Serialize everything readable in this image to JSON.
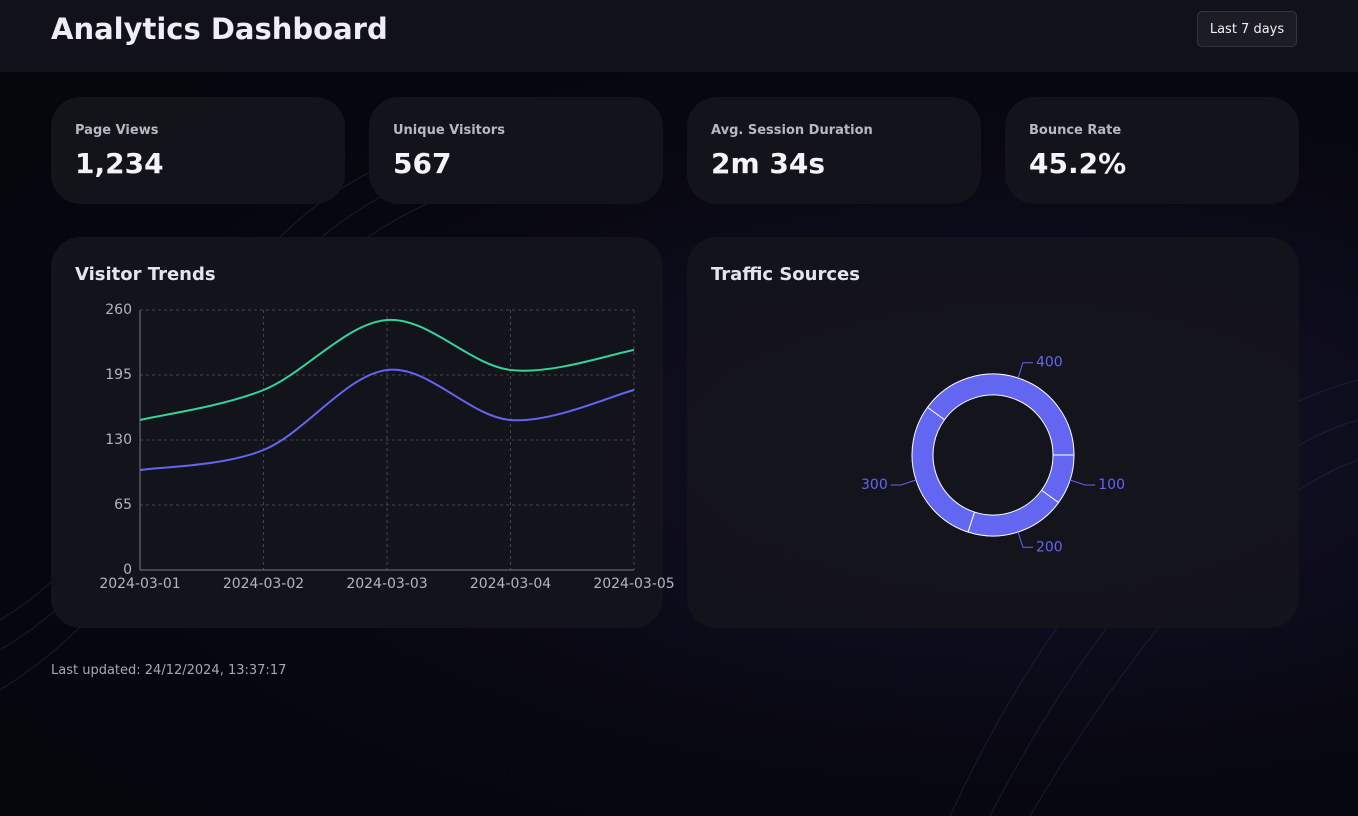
{
  "header": {
    "title": "Analytics Dashboard",
    "range_button": "Last 7 days"
  },
  "stats": [
    {
      "label": "Page Views",
      "value": "1,234"
    },
    {
      "label": "Unique Visitors",
      "value": "567"
    },
    {
      "label": "Avg. Session Duration",
      "value": "2m 34s"
    },
    {
      "label": "Bounce Rate",
      "value": "45.2%"
    }
  ],
  "chart_data": [
    {
      "type": "line",
      "title": "Visitor Trends",
      "categories": [
        "2024-03-01",
        "2024-03-02",
        "2024-03-03",
        "2024-03-04",
        "2024-03-05"
      ],
      "series": [
        {
          "color": "#34d399",
          "values": [
            150,
            180,
            250,
            200,
            220
          ]
        },
        {
          "color": "#6366f1",
          "values": [
            100,
            120,
            200,
            150,
            180
          ]
        }
      ],
      "ylim": [
        0,
        260
      ],
      "yticks": [
        0,
        65,
        130,
        195,
        260
      ],
      "grid": true,
      "smooth": true
    },
    {
      "type": "pie",
      "title": "Traffic Sources",
      "values": [
        400,
        100,
        200,
        300
      ],
      "color": "#6366f1",
      "donut": true
    }
  ],
  "footer": "Last updated: 24/12/2024, 13:37:17"
}
